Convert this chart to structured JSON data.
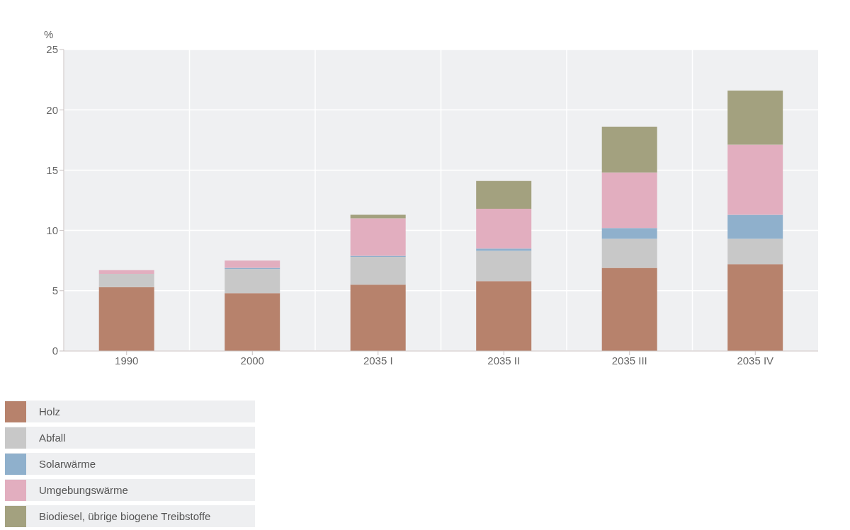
{
  "chart_data": {
    "type": "bar",
    "stacked": true,
    "ylabel": "%",
    "categories": [
      "1990",
      "2000",
      "2035 I",
      "2035 II",
      "2035 III",
      "2035 IV"
    ],
    "series": [
      {
        "name": "Holz",
        "color": "#b7826c",
        "values": [
          5.3,
          4.8,
          5.5,
          5.8,
          6.9,
          7.2
        ]
      },
      {
        "name": "Abfall",
        "color": "#c8c8c8",
        "values": [
          1.1,
          2.0,
          2.3,
          2.5,
          2.4,
          2.1
        ]
      },
      {
        "name": "Solarwärme",
        "color": "#8fb0cc",
        "values": [
          0,
          0.1,
          0.1,
          0.2,
          0.9,
          2.0
        ]
      },
      {
        "name": "Umgebungswärme",
        "color": "#e2aebf",
        "values": [
          0.3,
          0.6,
          3.1,
          3.3,
          4.6,
          5.8
        ]
      },
      {
        "name": "Biodiesel, übrige biogene Treibstoffe",
        "color": "#a3a17f",
        "values": [
          0,
          0,
          0.3,
          2.3,
          3.8,
          4.5
        ]
      }
    ],
    "ylim": [
      0,
      25
    ],
    "yticks": [
      0,
      5,
      10,
      15,
      20,
      25
    ],
    "grid": true,
    "legend": "bottom left"
  }
}
